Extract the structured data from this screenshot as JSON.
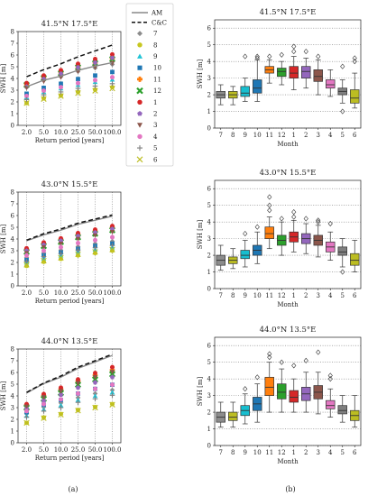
{
  "panel_labels": [
    "(a)",
    "(b)"
  ],
  "legend": {
    "lines": [
      {
        "label": "AM",
        "style": "solid",
        "color": "#888888"
      },
      {
        "label": "C&C",
        "style": "dashed",
        "color": "#111111"
      }
    ],
    "months": [
      {
        "label": "7",
        "marker": "diamond",
        "color": "#8c8c8c"
      },
      {
        "label": "8",
        "marker": "circle",
        "color": "#c7c720"
      },
      {
        "label": "9",
        "marker": "triangle-up",
        "color": "#22c4d6"
      },
      {
        "label": "10",
        "marker": "square",
        "color": "#1f77b4"
      },
      {
        "label": "11",
        "marker": "plus-filled",
        "color": "#ff7f0e"
      },
      {
        "label": "12",
        "marker": "x-filled",
        "color": "#2ca02c"
      },
      {
        "label": "1",
        "marker": "circle",
        "color": "#d62728"
      },
      {
        "label": "2",
        "marker": "pentagon",
        "color": "#9467bd"
      },
      {
        "label": "3",
        "marker": "triangle-down",
        "color": "#8c564b"
      },
      {
        "label": "4",
        "marker": "circle",
        "color": "#e377c2"
      },
      {
        "label": "5",
        "marker": "plus",
        "color": "#7f7f7f"
      },
      {
        "label": "6",
        "marker": "x",
        "color": "#bcbd22"
      }
    ]
  },
  "chart_data": [
    {
      "type": "scatter",
      "title": "41.5°N 17.5°E",
      "xlabel": "Return period [years]",
      "ylabel": "SWH [m]",
      "categories": [
        "2.0",
        "5.0",
        "10.0",
        "25.0",
        "50.0",
        "100.0"
      ],
      "ylim": [
        0,
        8
      ],
      "yticks": [
        "0",
        "1",
        "2",
        "3",
        "4",
        "5",
        "6",
        "7",
        "8"
      ],
      "grid": "vertical-dotted",
      "lines": [
        {
          "name": "AM",
          "values": [
            3.3,
            3.85,
            4.2,
            4.7,
            5.05,
            5.35
          ]
        },
        {
          "name": "C&C",
          "values": [
            4.15,
            4.75,
            5.25,
            5.85,
            6.35,
            6.85
          ]
        }
      ],
      "series": [
        {
          "name": "7",
          "values": [
            3.3,
            3.85,
            4.15,
            4.6,
            4.9,
            5.2
          ]
        },
        {
          "name": "8",
          "values": [
            1.9,
            2.3,
            2.55,
            2.85,
            3.05,
            3.25
          ]
        },
        {
          "name": "9",
          "values": [
            2.4,
            2.85,
            3.15,
            3.45,
            3.7,
            3.9
          ]
        },
        {
          "name": "10",
          "values": [
            2.7,
            3.2,
            3.55,
            3.95,
            4.25,
            4.55
          ]
        },
        {
          "name": "11",
          "values": [
            3.5,
            4.1,
            4.5,
            5.0,
            5.35,
            5.7
          ]
        },
        {
          "name": "12",
          "values": [
            3.45,
            4.05,
            4.45,
            4.95,
            5.3,
            5.65
          ]
        },
        {
          "name": "1",
          "values": [
            3.6,
            4.25,
            4.7,
            5.25,
            5.65,
            6.05
          ]
        },
        {
          "name": "2",
          "values": [
            3.3,
            3.95,
            4.4,
            4.95,
            5.35,
            5.75
          ]
        },
        {
          "name": "3",
          "values": [
            3.2,
            3.75,
            4.1,
            4.6,
            4.95,
            5.3
          ]
        },
        {
          "name": "4",
          "values": [
            2.5,
            2.95,
            3.25,
            3.6,
            3.85,
            4.1
          ]
        },
        {
          "name": "5",
          "values": [
            2.2,
            2.6,
            2.85,
            3.15,
            3.35,
            3.55
          ]
        },
        {
          "name": "6",
          "values": [
            1.9,
            2.25,
            2.5,
            2.75,
            2.95,
            3.15
          ]
        }
      ]
    },
    {
      "type": "scatter",
      "title": "43.0°N 15.5°E",
      "xlabel": "Return period [years]",
      "ylabel": "SWH [m]",
      "categories": [
        "2.0",
        "5.0",
        "10.0",
        "25.0",
        "50.0",
        "100.0"
      ],
      "ylim": [
        0,
        8
      ],
      "yticks": [
        "0",
        "1",
        "2",
        "3",
        "4",
        "5",
        "6",
        "7",
        "8"
      ],
      "grid": "vertical-dotted",
      "lines": [
        {
          "name": "AM",
          "values": [
            3.85,
            4.35,
            4.75,
            5.25,
            5.6,
            5.95
          ]
        },
        {
          "name": "C&C",
          "values": [
            3.9,
            4.45,
            4.85,
            5.35,
            5.7,
            6.05
          ]
        }
      ],
      "series": [
        {
          "name": "7",
          "values": [
            2.4,
            2.8,
            3.05,
            3.35,
            3.6,
            3.8
          ]
        },
        {
          "name": "8",
          "values": [
            1.7,
            2.05,
            2.3,
            2.6,
            2.8,
            3.0
          ]
        },
        {
          "name": "9",
          "values": [
            2.0,
            2.35,
            2.6,
            2.9,
            3.1,
            3.3
          ]
        },
        {
          "name": "10",
          "values": [
            2.2,
            2.6,
            2.85,
            3.15,
            3.4,
            3.6
          ]
        },
        {
          "name": "11",
          "values": [
            3.1,
            3.6,
            3.95,
            4.35,
            4.65,
            4.95
          ]
        },
        {
          "name": "12",
          "values": [
            2.9,
            3.4,
            3.75,
            4.15,
            4.45,
            4.75
          ]
        },
        {
          "name": "1",
          "values": [
            3.2,
            3.7,
            4.05,
            4.5,
            4.8,
            5.1
          ]
        },
        {
          "name": "2",
          "values": [
            3.0,
            3.5,
            3.85,
            4.25,
            4.55,
            4.85
          ]
        },
        {
          "name": "3",
          "values": [
            2.8,
            3.3,
            3.6,
            4.0,
            4.3,
            4.6
          ]
        },
        {
          "name": "4",
          "values": [
            2.6,
            3.0,
            3.3,
            3.65,
            3.9,
            4.15
          ]
        },
        {
          "name": "5",
          "values": [
            2.1,
            2.5,
            2.75,
            3.05,
            3.25,
            3.45
          ]
        },
        {
          "name": "6",
          "values": [
            1.8,
            2.15,
            2.4,
            2.7,
            2.9,
            3.1
          ]
        }
      ]
    },
    {
      "type": "scatter",
      "title": "44.0°N 13.5°E",
      "xlabel": "Return period [years]",
      "ylabel": "SWH [m]",
      "categories": [
        "2.0",
        "5.0",
        "10.0",
        "25.0",
        "50.0",
        "100.0"
      ],
      "ylim": [
        0,
        8
      ],
      "yticks": [
        "0",
        "1",
        "2",
        "3",
        "4",
        "5",
        "6",
        "7",
        "8"
      ],
      "grid": "vertical-dotted",
      "lines": [
        {
          "name": "AM",
          "values": [
            4.25,
            5.05,
            5.6,
            6.35,
            6.9,
            7.45
          ]
        },
        {
          "name": "C&C",
          "values": [
            4.3,
            5.1,
            5.7,
            6.45,
            7.0,
            7.55
          ]
        }
      ],
      "series": [
        {
          "name": "7",
          "values": [
            2.5,
            3.05,
            3.4,
            3.85,
            4.2,
            4.5
          ]
        },
        {
          "name": "8",
          "values": [
            1.7,
            2.15,
            2.45,
            2.8,
            3.05,
            3.3
          ]
        },
        {
          "name": "9",
          "values": [
            2.3,
            2.85,
            3.2,
            3.65,
            4.0,
            4.3
          ]
        },
        {
          "name": "10",
          "values": [
            2.6,
            3.25,
            3.65,
            4.2,
            4.6,
            4.95
          ]
        },
        {
          "name": "11",
          "values": [
            3.2,
            4.0,
            4.55,
            5.25,
            5.75,
            6.2
          ]
        },
        {
          "name": "12",
          "values": [
            3.0,
            3.75,
            4.25,
            4.95,
            5.4,
            5.85
          ]
        },
        {
          "name": "1",
          "values": [
            3.3,
            4.15,
            4.7,
            5.4,
            5.95,
            6.45
          ]
        },
        {
          "name": "2",
          "values": [
            2.9,
            3.6,
            4.1,
            4.7,
            5.15,
            5.6
          ]
        },
        {
          "name": "3",
          "values": [
            3.1,
            3.9,
            4.4,
            5.1,
            5.6,
            6.05
          ]
        },
        {
          "name": "4",
          "values": [
            2.7,
            3.3,
            3.7,
            4.2,
            4.6,
            4.95
          ]
        },
        {
          "name": "5",
          "values": [
            2.2,
            2.7,
            3.0,
            3.45,
            3.75,
            4.05
          ]
        },
        {
          "name": "6",
          "values": [
            1.7,
            2.1,
            2.4,
            2.75,
            3.0,
            3.25
          ]
        }
      ]
    },
    {
      "type": "box",
      "title": "41.5°N 17.5°E",
      "xlabel": "Month",
      "ylabel": "SWH [m]",
      "categories": [
        "7",
        "8",
        "9",
        "10",
        "11",
        "12",
        "1",
        "2",
        "3",
        "4",
        "5",
        "6"
      ],
      "ylim": [
        0,
        6.5
      ],
      "yticks": [
        "0",
        "1",
        "2",
        "3",
        "4",
        "5",
        "6"
      ],
      "grid": "horizontal-dotted",
      "boxes": [
        {
          "whislo": 1.4,
          "q1": 1.8,
          "med": 2.0,
          "q3": 2.2,
          "whishi": 2.6,
          "fliers": []
        },
        {
          "whislo": 1.4,
          "q1": 1.8,
          "med": 2.0,
          "q3": 2.2,
          "whishi": 2.5,
          "fliers": []
        },
        {
          "whislo": 1.6,
          "q1": 1.9,
          "med": 2.1,
          "q3": 2.5,
          "whishi": 3.0,
          "fliers": [
            4.3
          ]
        },
        {
          "whislo": 1.6,
          "q1": 2.1,
          "med": 2.4,
          "q3": 2.9,
          "whishi": 4.1,
          "fliers": [
            4.2,
            4.3
          ]
        },
        {
          "whislo": 2.7,
          "q1": 3.3,
          "med": 3.5,
          "q3": 3.7,
          "whishi": 4.1,
          "fliers": [
            4.3
          ]
        },
        {
          "whislo": 2.6,
          "q1": 3.1,
          "med": 3.4,
          "q3": 3.6,
          "whishi": 4.0,
          "fliers": [
            4.4
          ]
        },
        {
          "whislo": 2.3,
          "q1": 3.0,
          "med": 3.3,
          "q3": 3.7,
          "whishi": 4.3,
          "fliers": [
            4.6,
            4.9
          ]
        },
        {
          "whislo": 2.4,
          "q1": 3.0,
          "med": 3.4,
          "q3": 3.7,
          "whishi": 4.2,
          "fliers": [
            4.6
          ]
        },
        {
          "whislo": 2.0,
          "q1": 2.8,
          "med": 3.1,
          "q3": 3.5,
          "whishi": 4.1,
          "fliers": [
            4.3
          ]
        },
        {
          "whislo": 1.9,
          "q1": 2.4,
          "med": 2.6,
          "q3": 2.9,
          "whishi": 3.5,
          "fliers": []
        },
        {
          "whislo": 1.5,
          "q1": 2.0,
          "med": 2.2,
          "q3": 2.4,
          "whishi": 2.9,
          "fliers": [
            1.0,
            3.7
          ]
        },
        {
          "whislo": 1.2,
          "q1": 1.5,
          "med": 1.8,
          "q3": 2.3,
          "whishi": 3.3,
          "fliers": [
            4.0,
            4.2
          ]
        }
      ]
    },
    {
      "type": "box",
      "title": "43.0°N 15.5°E",
      "xlabel": "Month",
      "ylabel": "SWH [m]",
      "categories": [
        "7",
        "8",
        "9",
        "10",
        "11",
        "12",
        "1",
        "2",
        "3",
        "4",
        "5",
        "6"
      ],
      "ylim": [
        0,
        6.5
      ],
      "yticks": [
        "0",
        "1",
        "2",
        "3",
        "4",
        "5",
        "6"
      ],
      "grid": "horizontal-dotted",
      "boxes": [
        {
          "whislo": 1.1,
          "q1": 1.4,
          "med": 1.7,
          "q3": 2.0,
          "whishi": 2.6,
          "fliers": []
        },
        {
          "whislo": 1.2,
          "q1": 1.5,
          "med": 1.7,
          "q3": 1.9,
          "whishi": 2.4,
          "fliers": []
        },
        {
          "whislo": 1.3,
          "q1": 1.8,
          "med": 2.0,
          "q3": 2.3,
          "whishi": 2.9,
          "fliers": [
            3.3
          ]
        },
        {
          "whislo": 1.5,
          "q1": 2.0,
          "med": 2.3,
          "q3": 2.6,
          "whishi": 3.4,
          "fliers": [
            3.7
          ]
        },
        {
          "whislo": 2.4,
          "q1": 3.0,
          "med": 3.3,
          "q3": 3.7,
          "whishi": 4.3,
          "fliers": [
            4.7,
            5.0,
            5.5
          ]
        },
        {
          "whislo": 2.0,
          "q1": 2.6,
          "med": 2.9,
          "q3": 3.2,
          "whishi": 4.0,
          "fliers": [
            4.2
          ]
        },
        {
          "whislo": 2.2,
          "q1": 2.8,
          "med": 3.1,
          "q3": 3.4,
          "whishi": 4.1,
          "fliers": [
            4.3,
            4.6
          ]
        },
        {
          "whislo": 2.1,
          "q1": 2.7,
          "med": 3.0,
          "q3": 3.3,
          "whishi": 3.9,
          "fliers": [
            4.2
          ]
        },
        {
          "whislo": 1.9,
          "q1": 2.6,
          "med": 2.9,
          "q3": 3.2,
          "whishi": 3.8,
          "fliers": [
            4.0,
            4.1
          ]
        },
        {
          "whislo": 1.7,
          "q1": 2.2,
          "med": 2.5,
          "q3": 2.8,
          "whishi": 3.4,
          "fliers": [
            3.9
          ]
        },
        {
          "whislo": 1.3,
          "q1": 2.0,
          "med": 2.2,
          "q3": 2.5,
          "whishi": 3.0,
          "fliers": [
            1.0
          ]
        },
        {
          "whislo": 1.0,
          "q1": 1.4,
          "med": 1.7,
          "q3": 2.1,
          "whishi": 2.9,
          "fliers": []
        }
      ]
    },
    {
      "type": "box",
      "title": "44.0°N 13.5°E",
      "xlabel": "Month",
      "ylabel": "SWH [m]",
      "categories": [
        "7",
        "8",
        "9",
        "10",
        "11",
        "12",
        "1",
        "2",
        "3",
        "4",
        "5",
        "6"
      ],
      "ylim": [
        0,
        6.5
      ],
      "yticks": [
        "0",
        "1",
        "2",
        "3",
        "4",
        "5",
        "6"
      ],
      "grid": "horizontal-dotted",
      "boxes": [
        {
          "whislo": 1.1,
          "q1": 1.4,
          "med": 1.7,
          "q3": 2.0,
          "whishi": 2.6,
          "fliers": []
        },
        {
          "whislo": 1.1,
          "q1": 1.5,
          "med": 1.7,
          "q3": 2.0,
          "whishi": 2.6,
          "fliers": []
        },
        {
          "whislo": 1.3,
          "q1": 1.8,
          "med": 2.1,
          "q3": 2.4,
          "whishi": 3.1,
          "fliers": [
            3.4
          ]
        },
        {
          "whislo": 1.4,
          "q1": 2.1,
          "med": 2.5,
          "q3": 2.9,
          "whishi": 3.7,
          "fliers": [
            4.1
          ]
        },
        {
          "whislo": 2.0,
          "q1": 3.0,
          "med": 3.5,
          "q3": 4.1,
          "whishi": 5.0,
          "fliers": [
            5.3,
            5.5
          ]
        },
        {
          "whislo": 2.0,
          "q1": 2.8,
          "med": 3.2,
          "q3": 3.7,
          "whishi": 4.6,
          "fliers": [
            5.0
          ]
        },
        {
          "whislo": 2.0,
          "q1": 2.6,
          "med": 2.9,
          "q3": 3.3,
          "whishi": 4.0,
          "fliers": [
            4.8
          ]
        },
        {
          "whislo": 2.0,
          "q1": 2.7,
          "med": 3.1,
          "q3": 3.5,
          "whishi": 4.4,
          "fliers": [
            5.1
          ]
        },
        {
          "whislo": 1.9,
          "q1": 2.8,
          "med": 3.2,
          "q3": 3.6,
          "whishi": 4.4,
          "fliers": [
            5.6
          ]
        },
        {
          "whislo": 1.7,
          "q1": 2.2,
          "med": 2.4,
          "q3": 2.7,
          "whishi": 3.4,
          "fliers": [
            4.0,
            4.2
          ]
        },
        {
          "whislo": 1.4,
          "q1": 1.9,
          "med": 2.1,
          "q3": 2.4,
          "whishi": 3.0,
          "fliers": []
        },
        {
          "whislo": 1.1,
          "q1": 1.5,
          "med": 1.8,
          "q3": 2.1,
          "whishi": 3.0,
          "fliers": []
        }
      ]
    }
  ]
}
